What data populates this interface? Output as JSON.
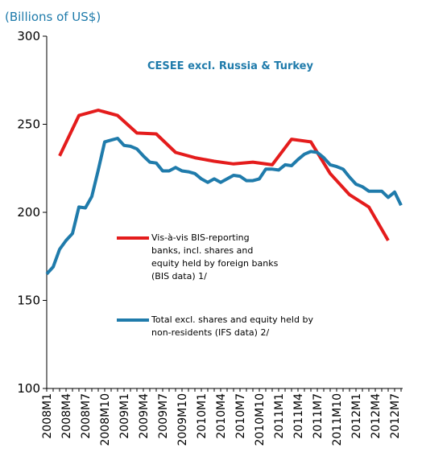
{
  "chart_data": {
    "type": "line",
    "subtitle": "(Billions of US$)",
    "annotation": "CESEE excl. Russia & Turkey",
    "categories": [
      "2008M1",
      null,
      null,
      "2008M4",
      null,
      null,
      "2008M7",
      null,
      null,
      "2008M10",
      null,
      null,
      "2009M1",
      null,
      null,
      "2009M4",
      null,
      null,
      "2009M7",
      null,
      null,
      "2009M10",
      null,
      null,
      "2010M1",
      null,
      null,
      "2010M4",
      null,
      null,
      "2010M7",
      null,
      null,
      "2010M10",
      null,
      null,
      "2011M1",
      null,
      null,
      "2011M4",
      null,
      null,
      "2011M7",
      null,
      null,
      "2011M10",
      null,
      null,
      "2012M1",
      null,
      null,
      "2012M4",
      null,
      null,
      "2012M7",
      null
    ],
    "ylim": [
      100,
      300
    ],
    "yticks": [
      100,
      150,
      200,
      250,
      300
    ],
    "series": [
      {
        "name": "Vis-à-vis BIS-reporting banks, incl. shares and equity held by foreign banks (BIS data) 1/",
        "color": "#e41c1c",
        "x": [
          "2008M3",
          "2008M6",
          "2008M9",
          "2008M12",
          "2009M3",
          "2009M6",
          "2009M9",
          "2009M12",
          "2010M3",
          "2010M6",
          "2010M9",
          "2010M12",
          "2011M3",
          "2011M6",
          "2011M9",
          "2011M12",
          "2012M3",
          "2012M6"
        ],
        "values": [
          232,
          255,
          258,
          255,
          245,
          244.5,
          234,
          231,
          229,
          227.5,
          228.5,
          227,
          241.5,
          240,
          222,
          210,
          203,
          184
        ]
      },
      {
        "name": "Total excl. shares and equity held by non-residents (IFS data) 2/",
        "color": "#1f7bab",
        "values": [
          165,
          169,
          179,
          184,
          188,
          203,
          202.5,
          209,
          224,
          240,
          241,
          242,
          238,
          237.5,
          236,
          232,
          228.5,
          228,
          223.5,
          223.5,
          225.5,
          223.5,
          223,
          222,
          219,
          217,
          219,
          217,
          219,
          221,
          220.5,
          218,
          218,
          219,
          224.5,
          224.5,
          224,
          227,
          226.5,
          230,
          233,
          234.5,
          234,
          231,
          227,
          226,
          224.5,
          220,
          216,
          214.5,
          212,
          212,
          212,
          208.5,
          211.5,
          204
        ]
      }
    ]
  }
}
